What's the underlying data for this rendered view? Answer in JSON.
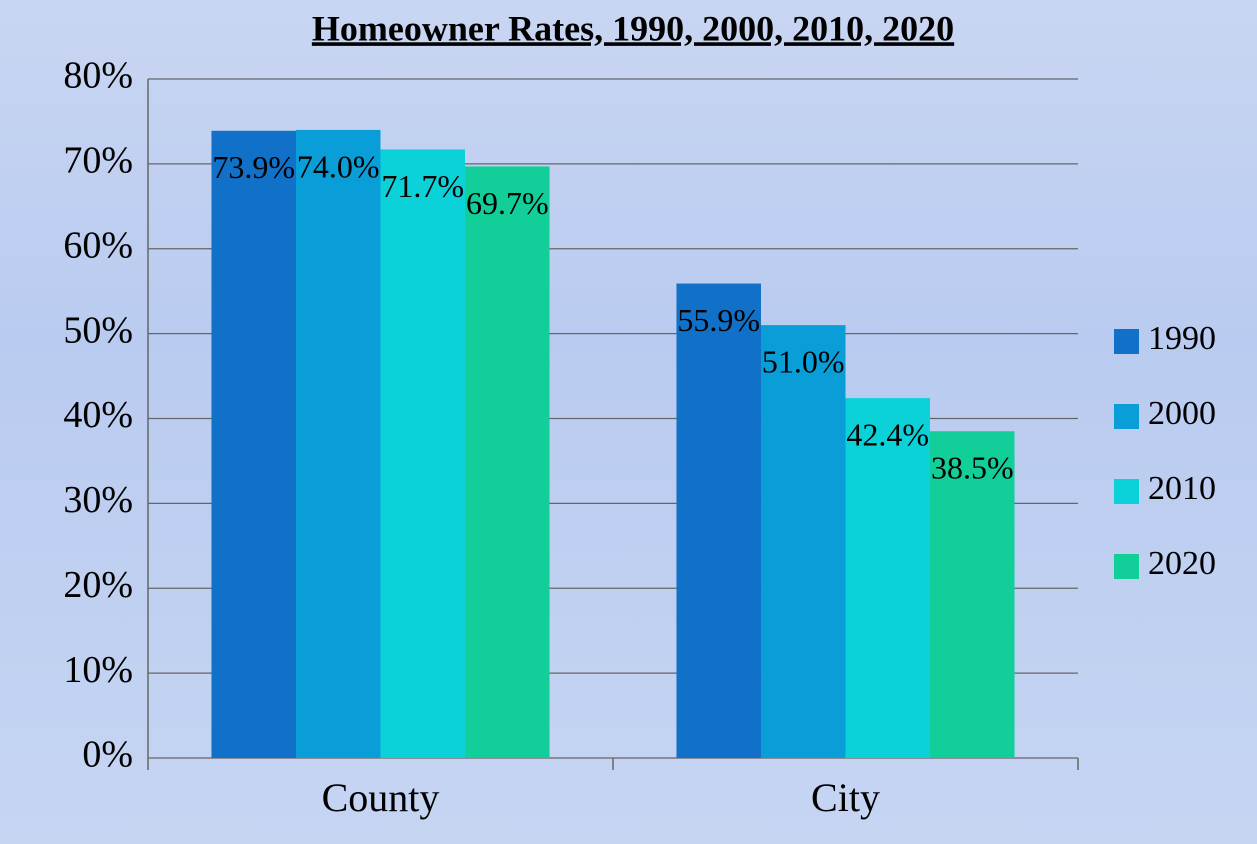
{
  "chart_data": {
    "type": "bar",
    "title": "Homeowner Rates, 1990, 2000, 2010, 2020",
    "categories": [
      "County",
      "City"
    ],
    "series": [
      {
        "name": "1990",
        "color": "#1170c8",
        "values": [
          73.9,
          55.9
        ],
        "value_labels": [
          "73.9%",
          "55.9%"
        ]
      },
      {
        "name": "2000",
        "color": "#0a9ed8",
        "values": [
          74.0,
          51.0
        ],
        "value_labels": [
          "74.0%",
          "51.0%"
        ]
      },
      {
        "name": "2010",
        "color": "#0bd1d9",
        "values": [
          71.7,
          42.4
        ],
        "value_labels": [
          "71.7%",
          "42.4%"
        ]
      },
      {
        "name": "2020",
        "color": "#12cf9a",
        "values": [
          69.7,
          38.5
        ],
        "value_labels": [
          "69.7%",
          "38.5%"
        ]
      }
    ],
    "ylim": [
      0,
      80
    ],
    "yticks": [
      {
        "value": 0,
        "label": "0%"
      },
      {
        "value": 10,
        "label": "10%"
      },
      {
        "value": 20,
        "label": "20%"
      },
      {
        "value": 30,
        "label": "30%"
      },
      {
        "value": 40,
        "label": "40%"
      },
      {
        "value": 50,
        "label": "50%"
      },
      {
        "value": 60,
        "label": "60%"
      },
      {
        "value": 70,
        "label": "70%"
      },
      {
        "value": 80,
        "label": "80%"
      }
    ],
    "grid": true,
    "legend": "right"
  }
}
